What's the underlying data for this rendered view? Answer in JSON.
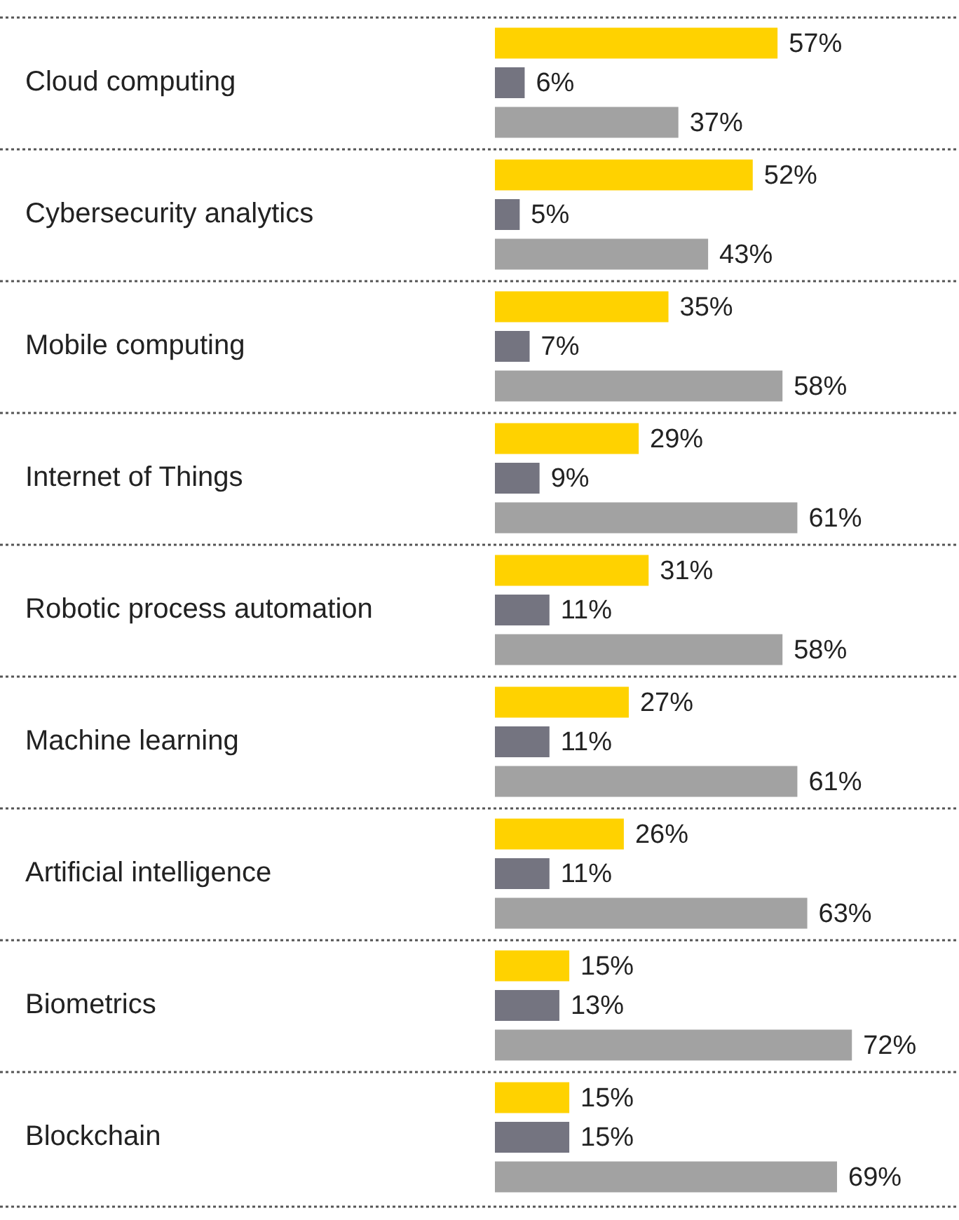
{
  "chart_data": {
    "type": "bar",
    "orientation": "horizontal",
    "grid": "y",
    "legend": false,
    "tick_labels": "y",
    "categories": [
      "Cloud computing",
      "Cybersecurity analytics",
      "Mobile computing",
      "Internet of Things",
      "Robotic process automation",
      "Machine learning",
      "Artificial intelligence",
      "Biometrics",
      "Blockchain"
    ],
    "series": [
      {
        "color": "#ffd200",
        "values": [
          57,
          52,
          35,
          29,
          31,
          27,
          26,
          15,
          15
        ],
        "value_labels": [
          "57%",
          "52%",
          "35%",
          "29%",
          "31%",
          "27%",
          "26%",
          "15%",
          "15%"
        ]
      },
      {
        "color": "#747480",
        "values": [
          6,
          5,
          7,
          9,
          11,
          11,
          11,
          13,
          15
        ],
        "value_labels": [
          "6%",
          "5%",
          "7%",
          "9%",
          "11%",
          "11%",
          "11%",
          "13%",
          "15%"
        ]
      },
      {
        "color": "#a2a2a2",
        "values": [
          37,
          43,
          58,
          61,
          58,
          61,
          63,
          72,
          69
        ],
        "value_labels": [
          "37%",
          "43%",
          "58%",
          "61%",
          "58%",
          "61%",
          "63%",
          "72%",
          "69%"
        ]
      }
    ]
  }
}
